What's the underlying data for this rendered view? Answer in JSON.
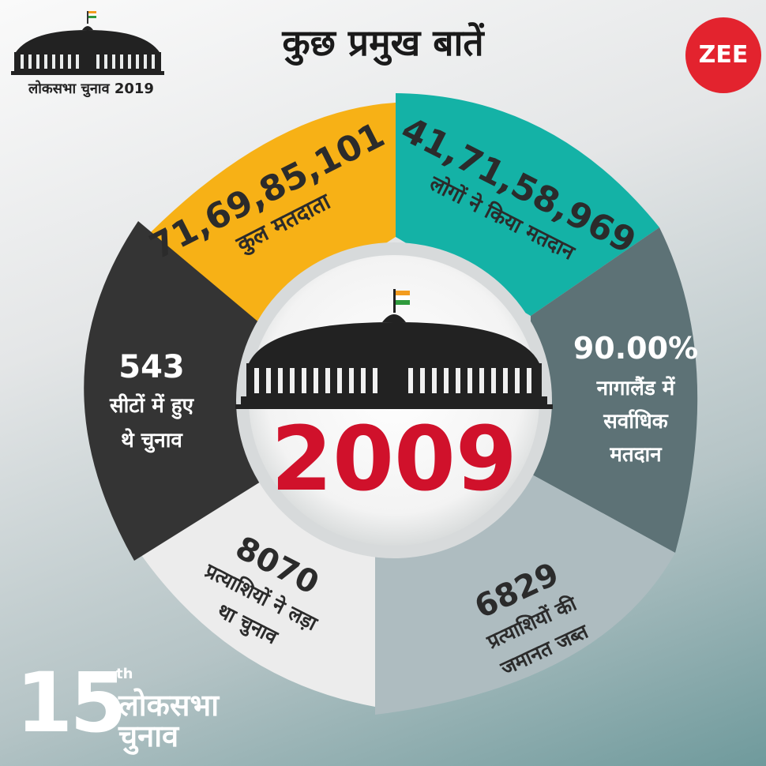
{
  "header": {
    "title": "कुछ प्रमुख बातें",
    "logo_caption": "लोकसभा चुनाव 2019",
    "brand": "ZEE"
  },
  "center": {
    "year": "2009"
  },
  "segments": {
    "voters": {
      "value": "71,69,85,101",
      "label": "कुल मतदाता",
      "color": "#f7b116"
    },
    "voted": {
      "value": "41,71,58,969",
      "label": "लोगों ने किया मतदान",
      "color": "#14b2a6"
    },
    "nagaland": {
      "value": "90.00%",
      "lines": [
        "नागालैंड में",
        "सर्वाधिक",
        "मतदान"
      ],
      "color": "#5d7276"
    },
    "forfeited": {
      "value": "6829",
      "lines": [
        "प्रत्याशियों की",
        "जमानत जब्त"
      ],
      "color": "#aebcc0"
    },
    "candidates": {
      "value": "8070",
      "lines": [
        "प्रत्याशियों ने लड़ा",
        "था चुनाव"
      ],
      "color": "#ececec"
    },
    "seats": {
      "value": "543",
      "lines": [
        "सीटों में हुए",
        "थे चुनाव"
      ],
      "color": "#343434"
    }
  },
  "footer": {
    "number": "15",
    "superscript": "th",
    "line1": "लोकसभा",
    "line2": "चुनाव"
  }
}
